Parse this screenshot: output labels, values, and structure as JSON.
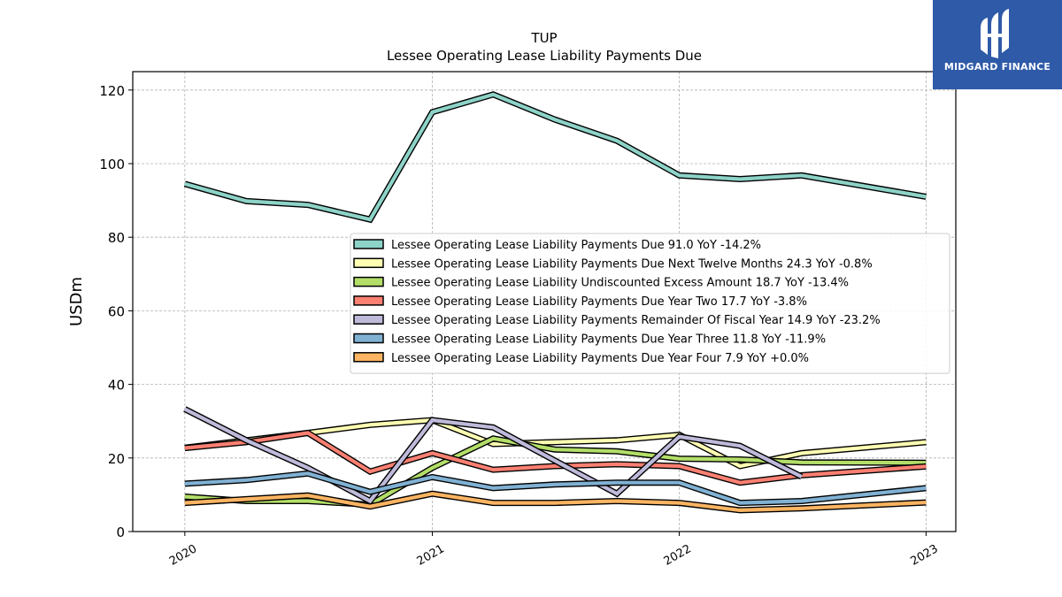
{
  "title_line1": "TUP",
  "title_line2": "Lessee Operating Lease Liability Payments Due",
  "ylabel": "USDm",
  "logo_text": "MIDGARD FINANCE",
  "chart_data": {
    "type": "line",
    "title": "TUP\nLessee Operating Lease Liability Payments Due",
    "xlabel": "",
    "ylabel": "USDm",
    "xlim": [
      "2019-10-16",
      "2023-02-14"
    ],
    "ylim": [
      0,
      125
    ],
    "grid": true,
    "legend_position": "center-right",
    "x_ticks": [
      {
        "date": "2020-01-01",
        "label": "2020"
      },
      {
        "date": "2021-01-01",
        "label": "2021"
      },
      {
        "date": "2022-01-01",
        "label": "2022"
      },
      {
        "date": "2023-01-01",
        "label": "2023"
      }
    ],
    "y_ticks": [
      0,
      20,
      40,
      60,
      80,
      100,
      120
    ],
    "series": [
      {
        "name": "Lessee Operating Lease Liability Payments Due",
        "legend": "Lessee Operating Lease Liability Payments Due  91.0 YoY -14.2%",
        "color": "#8dd3c7",
        "points": [
          [
            "2020-01-01",
            94.5
          ],
          [
            "2020-04-01",
            89.8
          ],
          [
            "2020-07-01",
            88.8
          ],
          [
            "2020-10-01",
            84.8
          ],
          [
            "2021-01-01",
            114.0
          ],
          [
            "2021-04-01",
            118.8
          ],
          [
            "2021-07-01",
            112.0
          ],
          [
            "2021-10-01",
            106.2
          ],
          [
            "2022-01-01",
            96.8
          ],
          [
            "2022-04-01",
            95.8
          ],
          [
            "2022-07-01",
            96.8
          ],
          [
            "2023-01-01",
            91.0
          ]
        ]
      },
      {
        "name": "Lessee Operating Lease Liability Payments Due Next Twelve Months",
        "legend": "Lessee Operating Lease Liability Payments Due Next Twelve Months  24.3 YoY -0.8%",
        "color": "#ffffb3",
        "points": [
          [
            "2020-01-01",
            22.8
          ],
          [
            "2020-04-01",
            24.8
          ],
          [
            "2020-07-01",
            26.8
          ],
          [
            "2020-10-01",
            29.0
          ],
          [
            "2021-01-01",
            30.3
          ],
          [
            "2021-04-01",
            23.8
          ],
          [
            "2021-07-01",
            24.3
          ],
          [
            "2021-10-01",
            24.8
          ],
          [
            "2022-01-01",
            26.3
          ],
          [
            "2022-04-01",
            17.8
          ],
          [
            "2022-07-01",
            21.3
          ],
          [
            "2023-01-01",
            24.3
          ]
        ]
      },
      {
        "name": "Lessee Operating Lease Liability Undiscounted Excess Amount",
        "legend": "Lessee Operating Lease Liability Undiscounted Excess Amount  18.7 YoY -13.4%",
        "color": "#b3de69",
        "points": [
          [
            "2020-01-01",
            9.5
          ],
          [
            "2020-04-01",
            8.3
          ],
          [
            "2020-07-01",
            8.3
          ],
          [
            "2020-10-01",
            7.3
          ],
          [
            "2021-01-01",
            17.3
          ],
          [
            "2021-04-01",
            25.3
          ],
          [
            "2021-07-01",
            22.3
          ],
          [
            "2021-10-01",
            21.8
          ],
          [
            "2022-01-01",
            19.8
          ],
          [
            "2022-04-01",
            19.6
          ],
          [
            "2022-07-01",
            18.8
          ],
          [
            "2023-01-01",
            18.7
          ]
        ]
      },
      {
        "name": "Lessee Operating Lease Liability Payments Due Year Two",
        "legend": "Lessee Operating Lease Liability Payments Due Year Two  17.7 YoY -3.8%",
        "color": "#fb8072",
        "points": [
          [
            "2020-01-01",
            22.7
          ],
          [
            "2020-04-01",
            24.3
          ],
          [
            "2020-07-01",
            26.8
          ],
          [
            "2020-10-01",
            16.3
          ],
          [
            "2021-01-01",
            21.3
          ],
          [
            "2021-04-01",
            16.8
          ],
          [
            "2021-07-01",
            17.8
          ],
          [
            "2021-10-01",
            18.3
          ],
          [
            "2022-01-01",
            17.8
          ],
          [
            "2022-04-01",
            13.3
          ],
          [
            "2022-07-01",
            15.3
          ],
          [
            "2023-01-01",
            17.7
          ]
        ]
      },
      {
        "name": "Lessee Operating Lease Liability Payments Remainder Of Fiscal Year",
        "legend": "Lessee Operating Lease Liability Payments Remainder Of Fiscal Year  14.9 YoY -23.2%",
        "color": "#bebada",
        "points": [
          [
            "2020-01-01",
            33.3
          ],
          [
            "2020-04-01",
            24.8
          ],
          [
            "2020-07-01",
            17.3
          ],
          [
            "2020-10-01",
            8.3
          ],
          [
            "2021-01-01",
            30.3
          ],
          [
            "2021-04-01",
            28.3
          ],
          [
            "2021-07-01",
            19.3
          ],
          [
            "2021-10-01",
            10.3
          ],
          [
            "2022-01-01",
            25.8
          ],
          [
            "2022-04-01",
            23.3
          ],
          [
            "2022-07-01",
            14.9
          ]
        ]
      },
      {
        "name": "Lessee Operating Lease Liability Payments Due Year Three",
        "legend": "Lessee Operating Lease Liability Payments Due Year Three  11.8 YoY -11.9%",
        "color": "#80b1d3",
        "points": [
          [
            "2020-01-01",
            13.0
          ],
          [
            "2020-04-01",
            14.0
          ],
          [
            "2020-07-01",
            15.8
          ],
          [
            "2020-10-01",
            10.8
          ],
          [
            "2021-01-01",
            14.8
          ],
          [
            "2021-04-01",
            11.8
          ],
          [
            "2021-07-01",
            12.8
          ],
          [
            "2021-10-01",
            13.3
          ],
          [
            "2022-01-01",
            13.3
          ],
          [
            "2022-04-01",
            7.8
          ],
          [
            "2022-07-01",
            8.3
          ],
          [
            "2023-01-01",
            11.8
          ]
        ]
      },
      {
        "name": "Lessee Operating Lease Liability Payments Due Year Four",
        "legend": "Lessee Operating Lease Liability Payments Due Year Four  7.9 YoY +0.0%",
        "color": "#fdb462",
        "points": [
          [
            "2020-01-01",
            7.8
          ],
          [
            "2020-04-01",
            8.8
          ],
          [
            "2020-07-01",
            9.8
          ],
          [
            "2020-10-01",
            6.8
          ],
          [
            "2021-01-01",
            10.3
          ],
          [
            "2021-04-01",
            7.8
          ],
          [
            "2021-07-01",
            7.8
          ],
          [
            "2021-10-01",
            8.3
          ],
          [
            "2022-01-01",
            7.8
          ],
          [
            "2022-04-01",
            5.8
          ],
          [
            "2022-07-01",
            6.3
          ],
          [
            "2023-01-01",
            7.9
          ]
        ]
      }
    ]
  }
}
